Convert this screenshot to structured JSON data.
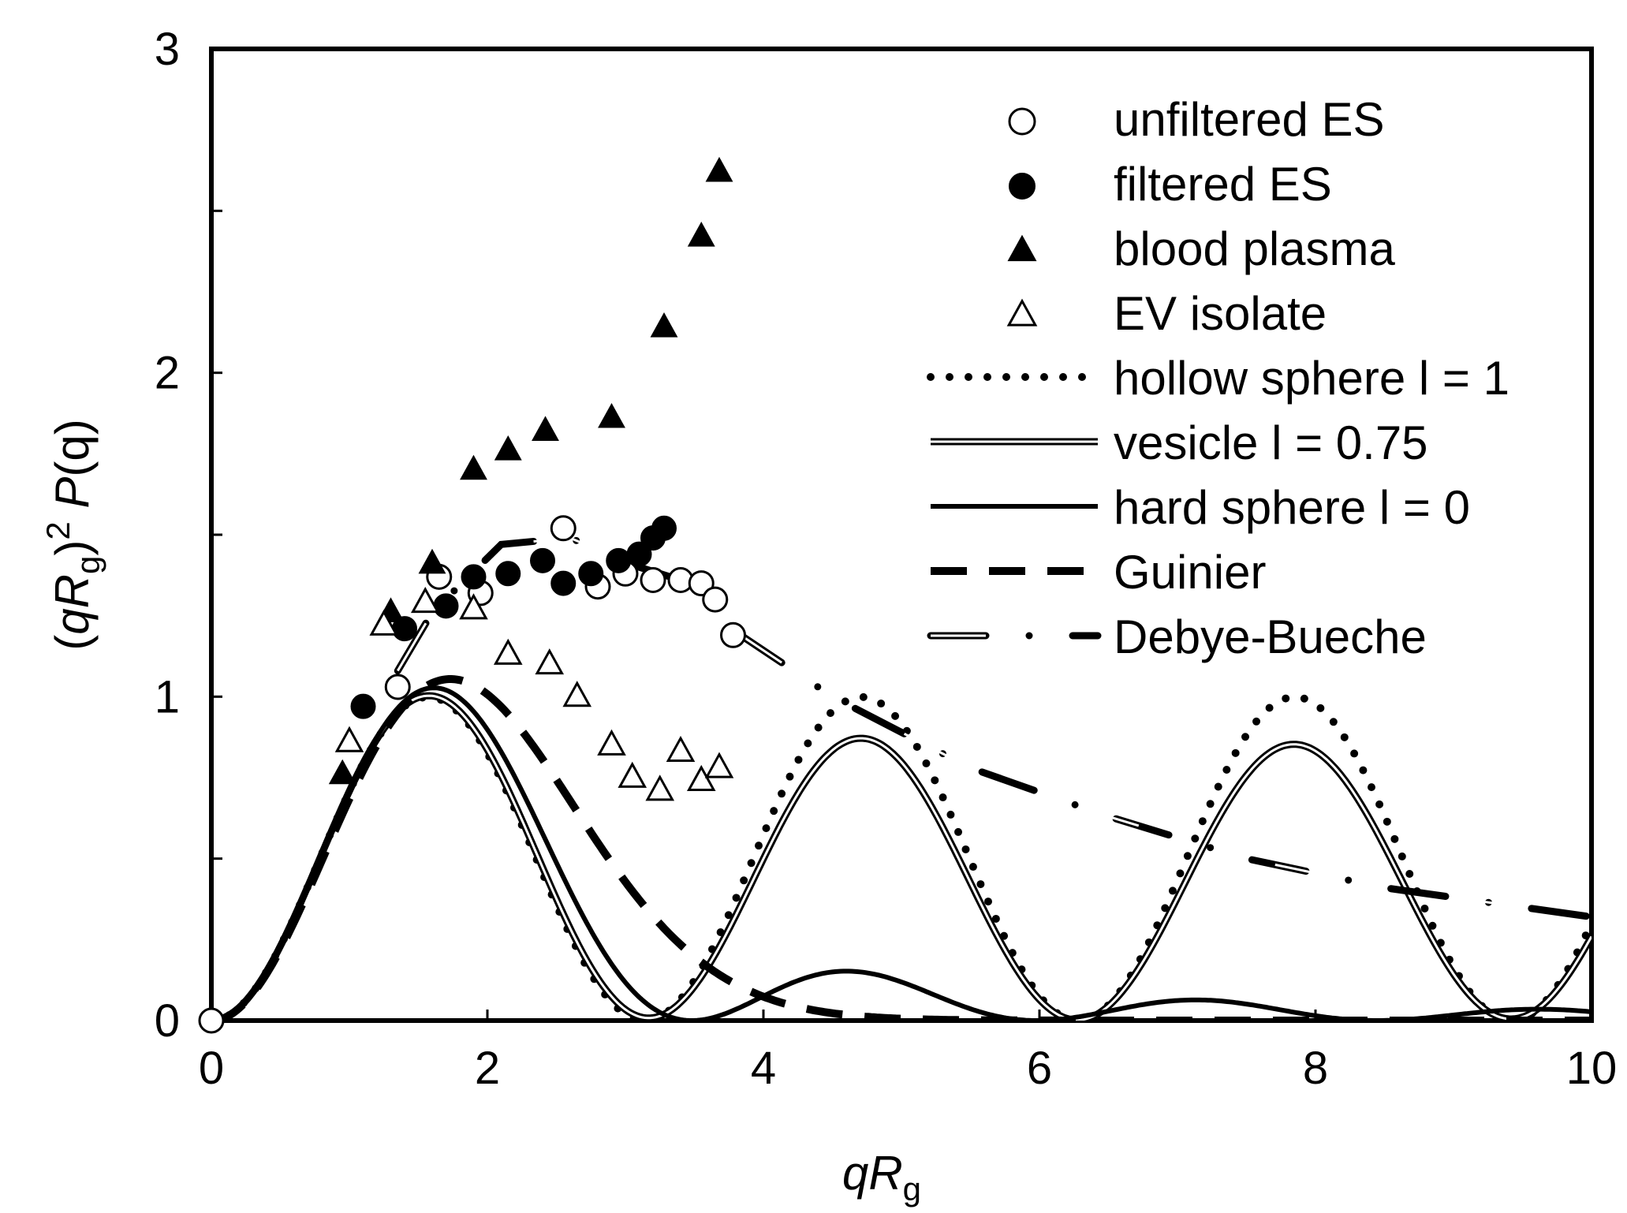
{
  "chart_data": {
    "type": "scatter",
    "xlabel": {
      "main": "qR",
      "sub": "g"
    },
    "ylabel": {
      "open": "(",
      "q": "q",
      "R": "R",
      "sub": "g",
      "close": ")",
      "sup": "2",
      "P": " P",
      "paren_q": "(q)"
    },
    "xlim": [
      0,
      10
    ],
    "ylim": [
      0,
      3
    ],
    "x_ticks": [
      "0",
      "2",
      "4",
      "6",
      "8",
      "10"
    ],
    "y_ticks": [
      "0",
      "1",
      "2",
      "3"
    ],
    "grid": false,
    "legend_position": "top-right",
    "series": [
      {
        "name": "unfiltered ES",
        "kind": "points",
        "marker": "open-circle",
        "x": [
          0.0,
          1.35,
          1.65,
          1.95,
          2.55,
          2.8,
          3.0,
          3.2,
          3.4,
          3.55,
          3.65,
          3.78
        ],
        "y": [
          0.0,
          1.03,
          1.37,
          1.32,
          1.52,
          1.34,
          1.38,
          1.36,
          1.36,
          1.35,
          1.3,
          1.19
        ]
      },
      {
        "name": "filtered ES",
        "kind": "points",
        "marker": "filled-circle",
        "x": [
          1.1,
          1.4,
          1.7,
          1.9,
          2.15,
          2.4,
          2.55,
          2.75,
          2.95,
          3.1,
          3.2,
          3.28
        ],
        "y": [
          0.97,
          1.21,
          1.28,
          1.37,
          1.38,
          1.42,
          1.35,
          1.38,
          1.42,
          1.44,
          1.49,
          1.52
        ]
      },
      {
        "name": "blood plasma",
        "kind": "points",
        "marker": "filled-triangle",
        "x": [
          0.95,
          1.3,
          1.6,
          1.9,
          2.15,
          2.42,
          2.9,
          3.28,
          3.55,
          3.68
        ],
        "y": [
          0.76,
          1.26,
          1.41,
          1.7,
          1.76,
          1.82,
          1.86,
          2.14,
          2.42,
          2.62
        ]
      },
      {
        "name": "EV isolate",
        "kind": "points",
        "marker": "open-triangle",
        "x": [
          1.0,
          1.25,
          1.55,
          1.9,
          2.15,
          2.45,
          2.65,
          2.9,
          3.05,
          3.25,
          3.4,
          3.55,
          3.68
        ],
        "y": [
          0.86,
          1.22,
          1.29,
          1.27,
          1.13,
          1.1,
          1.0,
          0.85,
          0.75,
          0.71,
          0.83,
          0.74,
          0.78
        ]
      },
      {
        "name": "hollow sphere l = 1",
        "kind": "line",
        "style": "dotted",
        "model": "hollow"
      },
      {
        "name": "vesicle l = 0.75",
        "kind": "line",
        "style": "double",
        "model": "vesicle"
      },
      {
        "name": "hard sphere l = 0",
        "kind": "line",
        "style": "solid",
        "model": "hard"
      },
      {
        "name": "Guinier",
        "kind": "line",
        "style": "dashed",
        "model": "guinier"
      },
      {
        "name": "Debye-Bueche",
        "kind": "line",
        "style": "dash-dot-double",
        "x": [
          1.35,
          1.6,
          2.1,
          2.6,
          3.1,
          3.55,
          3.8
        ],
        "y": [
          1.08,
          1.26,
          1.47,
          1.49,
          1.4,
          1.34,
          1.26
        ],
        "x2": [
          3.8,
          4.5,
          5.5,
          6.5,
          7.5,
          8.5,
          10.0
        ],
        "y2": [
          1.2,
          1.0,
          0.78,
          0.63,
          0.5,
          0.41,
          0.32
        ]
      }
    ]
  }
}
